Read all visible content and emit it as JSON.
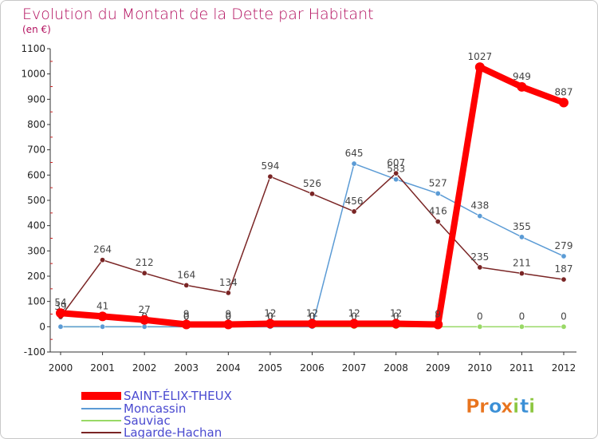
{
  "chart_data": {
    "type": "line",
    "title": "Evolution du Montant de la Dette par Habitant",
    "subtitle": "(en €)",
    "x": [
      "2000",
      "2001",
      "2002",
      "2003",
      "2004",
      "2005",
      "2006",
      "2007",
      "2008",
      "2009",
      "2010",
      "2011",
      "2012"
    ],
    "ylim": [
      -100,
      1100
    ],
    "yticks": [
      -100,
      0,
      100,
      200,
      300,
      400,
      500,
      600,
      700,
      800,
      900,
      1000,
      1100
    ],
    "grid": false,
    "legend_position": "bottom-left",
    "series": [
      {
        "name": "SAINT-ÉLIX-THEUX",
        "color": "#ff0000",
        "values": [
          54,
          41,
          27,
          9,
          9,
          12,
          12,
          12,
          12,
          9,
          1027,
          949,
          887
        ],
        "labels": [
          "54",
          "41",
          "27",
          "9",
          "9",
          "12",
          "12",
          "12",
          "12",
          "9",
          "1027",
          "949",
          "887"
        ]
      },
      {
        "name": "Moncassin",
        "color": "#5b9bd5",
        "values": [
          0,
          0,
          0,
          0,
          0,
          0,
          0,
          645,
          583,
          527,
          438,
          355,
          279
        ],
        "labels": [
          "0",
          "0",
          "0",
          "0",
          "0",
          "0",
          "0",
          "645",
          "583",
          "527",
          "438",
          "355",
          "279"
        ]
      },
      {
        "name": "Sauviac",
        "color": "#99d966",
        "values": [
          0,
          0,
          0,
          0,
          0,
          0,
          0,
          0,
          0,
          0,
          0,
          0,
          0
        ],
        "labels": [
          "0",
          "0",
          "0",
          "0",
          "0",
          "0",
          "0",
          "0",
          "0",
          "0",
          "0",
          "0",
          "0"
        ]
      },
      {
        "name": "Lagarde-Hachan",
        "color": "#7a2525",
        "values": [
          39,
          264,
          212,
          164,
          134,
          594,
          526,
          456,
          607,
          416,
          235,
          211,
          187
        ],
        "labels": [
          "39",
          "264",
          "212",
          "164",
          "134",
          "594",
          "526",
          "456",
          "607",
          "416",
          "235",
          "211",
          "187"
        ]
      }
    ]
  },
  "logo": {
    "text": "Proxiti",
    "letters": [
      "P",
      "r",
      "o",
      "x",
      "i",
      "t",
      "i"
    ],
    "colors": [
      "#e8741e",
      "#e8741e",
      "#3a8fd6",
      "#e8741e",
      "#8cc63f",
      "#3a8fd6",
      "#8cc63f"
    ]
  }
}
